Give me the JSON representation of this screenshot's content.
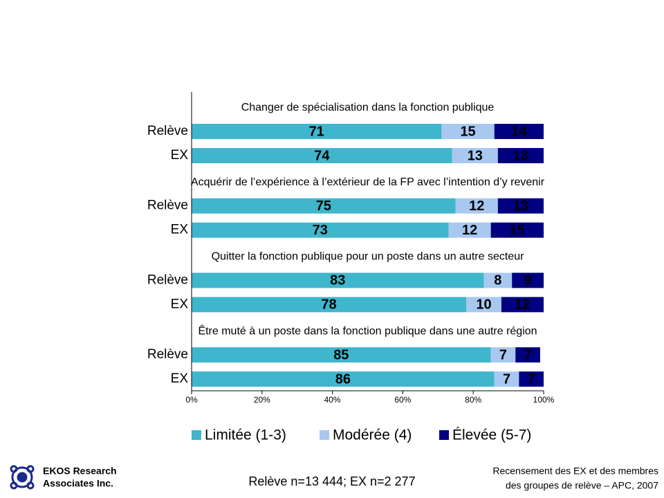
{
  "chart_data": {
    "type": "stacked_bar_h",
    "group_titles": [
      "Changer de spécialisation dans la fonction publique",
      "Acquérir de l’expérience à l’extérieur de la FP avec l’intention d’y revenir",
      "Quitter la fonction publique pour un poste dans un autre secteur",
      "Être muté à un poste dans la fonction publique dans une autre région"
    ],
    "categories": [
      "Relève",
      "EX",
      "Relève",
      "EX",
      "Relève",
      "EX",
      "Relève",
      "EX"
    ],
    "series": [
      {
        "name": "Limitée (1-3)",
        "color": "#3fb6cc",
        "values": [
          71,
          74,
          75,
          73,
          83,
          78,
          85,
          86
        ]
      },
      {
        "name": "Modérée (4)",
        "color": "#a8c8f0",
        "values": [
          15,
          13,
          12,
          12,
          8,
          10,
          7,
          7
        ]
      },
      {
        "name": "Élevée (5-7)",
        "color": "#000080",
        "values": [
          14,
          13,
          13,
          15,
          9,
          12,
          7,
          7
        ]
      }
    ],
    "xlim": [
      0,
      100
    ],
    "xticks": [
      {
        "value": 0,
        "label": "0%"
      },
      {
        "value": 20,
        "label": "20%"
      },
      {
        "value": 40,
        "label": "40%"
      },
      {
        "value": 60,
        "label": "60%"
      },
      {
        "value": 80,
        "label": "80%"
      },
      {
        "value": 100,
        "label": "100%"
      }
    ],
    "legend": "bottom"
  },
  "footer": {
    "logo_text": [
      "EKOS Research",
      "Associates Inc."
    ],
    "note": "Relève n=13 444; EX n=2 277",
    "source": [
      "Recensement des EX et des membres",
      "des groupes de relève – APC, 2007"
    ]
  }
}
